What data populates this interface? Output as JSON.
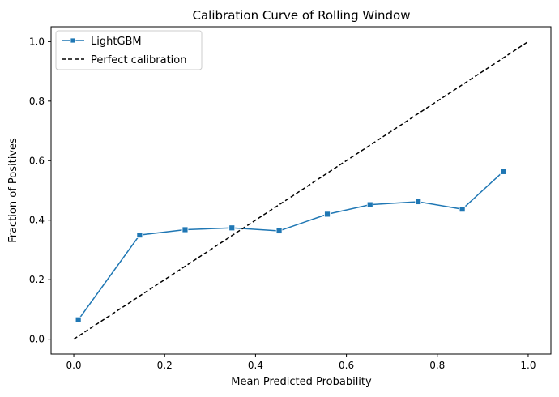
{
  "chart_data": {
    "type": "line",
    "title": "Calibration Curve of Rolling Window",
    "xlabel": "Mean Predicted Probability",
    "ylabel": "Fraction of Positives",
    "xlim": [
      -0.05,
      1.05
    ],
    "ylim": [
      -0.05,
      1.05
    ],
    "xticks": [
      0.0,
      0.2,
      0.4,
      0.6,
      0.8,
      1.0
    ],
    "yticks": [
      0.0,
      0.2,
      0.4,
      0.6,
      0.8,
      1.0
    ],
    "xtick_labels": [
      "0.0",
      "0.2",
      "0.4",
      "0.6",
      "0.8",
      "1.0"
    ],
    "ytick_labels": [
      "0.0",
      "0.2",
      "0.4",
      "0.6",
      "0.8",
      "1.0"
    ],
    "grid": false,
    "legend_position": "top-left",
    "series": [
      {
        "name": "LightGBM",
        "style": "solid",
        "marker": "square",
        "color": "#1f77b4",
        "x": [
          0.01,
          0.145,
          0.245,
          0.348,
          0.452,
          0.558,
          0.652,
          0.758,
          0.855,
          0.945
        ],
        "y": [
          0.065,
          0.35,
          0.368,
          0.374,
          0.364,
          0.42,
          0.452,
          0.462,
          0.437,
          0.563
        ]
      },
      {
        "name": "Perfect calibration",
        "style": "dashed",
        "marker": "none",
        "color": "#000000",
        "x": [
          0.0,
          1.0
        ],
        "y": [
          0.0,
          1.0
        ]
      }
    ]
  }
}
